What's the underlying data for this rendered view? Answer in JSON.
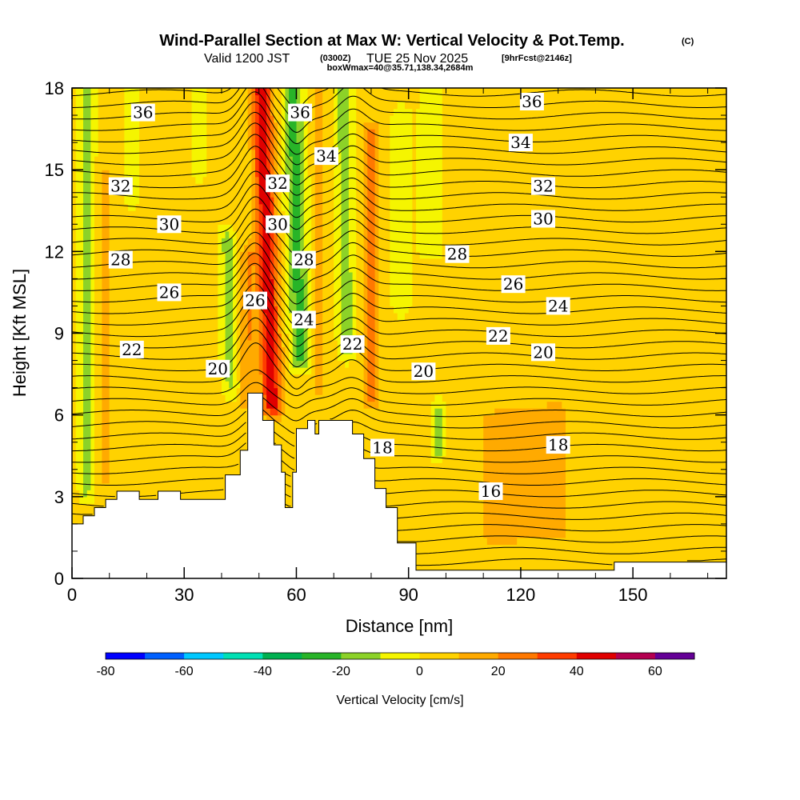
{
  "title": {
    "main": "Wind-Parallel Section at Max W: Vertical Velocity & Pot.Temp.",
    "copyright": "(C)",
    "valid_prefix": "Valid 1200 JST",
    "valid_utc": "(0300Z)",
    "valid_date": "TUE 25 Nov 2025",
    "forecast": "[9hrFcst@2146z]",
    "box_info": "boxWmax=40@35.71,138.34,2684m"
  },
  "chart_data": {
    "type": "heatmap",
    "xlabel": "Distance [nm]",
    "ylabel": "Height [Kft MSL]",
    "xlim": [
      0,
      175
    ],
    "ylim": [
      0,
      18
    ],
    "x_ticks": [
      0,
      30,
      60,
      90,
      120,
      150
    ],
    "y_ticks": [
      0,
      3,
      6,
      9,
      12,
      15,
      18
    ],
    "terrain": {
      "description": "Terrain profile (Kft) vs distance (nm)",
      "x": [
        0,
        3,
        3,
        6,
        6,
        9,
        9,
        12,
        12,
        18,
        18,
        23,
        23,
        29,
        29,
        41,
        41,
        45,
        45,
        47,
        47,
        51,
        51,
        54,
        54,
        56,
        56,
        57,
        57,
        59,
        59,
        60,
        60,
        63,
        63,
        65,
        65,
        66,
        66,
        69,
        69,
        75,
        75,
        78,
        78,
        81,
        81,
        84,
        84,
        87,
        87,
        92,
        92,
        105,
        105,
        145,
        145,
        175
      ],
      "y": [
        2.0,
        2.0,
        2.3,
        2.3,
        2.6,
        2.6,
        2.9,
        2.9,
        3.2,
        3.2,
        2.9,
        2.9,
        3.2,
        3.2,
        2.9,
        2.9,
        3.8,
        3.8,
        4.7,
        4.7,
        6.8,
        6.8,
        5.8,
        5.8,
        4.9,
        4.9,
        3.9,
        3.9,
        2.6,
        2.6,
        3.9,
        3.9,
        5.5,
        5.5,
        5.8,
        5.8,
        5.3,
        5.3,
        5.8,
        5.8,
        5.8,
        5.8,
        5.3,
        5.3,
        4.4,
        4.4,
        3.3,
        3.3,
        2.6,
        2.6,
        1.3,
        1.3,
        0.3,
        0.3,
        0.3,
        0.3,
        0.6,
        0.6
      ]
    },
    "contours_theta": {
      "unit": "C",
      "labels": [
        {
          "value": "36",
          "x": 19,
          "y": 17.1
        },
        {
          "value": "36",
          "x": 61,
          "y": 17.1
        },
        {
          "value": "36",
          "x": 123,
          "y": 17.5
        },
        {
          "value": "34",
          "x": 68,
          "y": 15.5
        },
        {
          "value": "34",
          "x": 120,
          "y": 16.0
        },
        {
          "value": "32",
          "x": 13,
          "y": 14.4
        },
        {
          "value": "32",
          "x": 55,
          "y": 14.5
        },
        {
          "value": "32",
          "x": 126,
          "y": 14.4
        },
        {
          "value": "30",
          "x": 26,
          "y": 13.0
        },
        {
          "value": "30",
          "x": 55,
          "y": 13.0
        },
        {
          "value": "30",
          "x": 126,
          "y": 13.2
        },
        {
          "value": "28",
          "x": 13,
          "y": 11.7
        },
        {
          "value": "28",
          "x": 62,
          "y": 11.7
        },
        {
          "value": "28",
          "x": 103,
          "y": 11.9
        },
        {
          "value": "26",
          "x": 26,
          "y": 10.5
        },
        {
          "value": "26",
          "x": 49,
          "y": 10.2
        },
        {
          "value": "26",
          "x": 118,
          "y": 10.8
        },
        {
          "value": "24",
          "x": 62,
          "y": 9.5
        },
        {
          "value": "24",
          "x": 130,
          "y": 10.0
        },
        {
          "value": "22",
          "x": 16,
          "y": 8.4
        },
        {
          "value": "22",
          "x": 75,
          "y": 8.6
        },
        {
          "value": "22",
          "x": 114,
          "y": 8.9
        },
        {
          "value": "20",
          "x": 39,
          "y": 7.7
        },
        {
          "value": "20",
          "x": 94,
          "y": 7.6
        },
        {
          "value": "20",
          "x": 126,
          "y": 8.3
        },
        {
          "value": "18",
          "x": 83,
          "y": 4.8
        },
        {
          "value": "18",
          "x": 130,
          "y": 4.9
        },
        {
          "value": "16",
          "x": 112,
          "y": 3.2
        }
      ]
    },
    "colorbar": {
      "label": "Vertical Velocity [cm/s]",
      "min": -80,
      "max": 70,
      "ticks": [
        "-80",
        "-60",
        "-40",
        "-20",
        "0",
        "20",
        "40",
        "60"
      ],
      "colors": [
        "#0000ff",
        "#0060ff",
        "#00c8ff",
        "#00e0b4",
        "#00b050",
        "#28b428",
        "#8cd228",
        "#f5f500",
        "#ffd200",
        "#ffaa00",
        "#ff7800",
        "#ff3c00",
        "#e00000",
        "#b40050",
        "#640096"
      ]
    },
    "vertical_velocity_features": [
      {
        "desc": "strong updraft",
        "x_center": 52,
        "y_range": [
          6.5,
          18
        ],
        "w_cms": 40
      },
      {
        "desc": "downdraft band",
        "x_center": 60,
        "y_range": [
          8,
          18
        ],
        "w_cms": -20
      },
      {
        "desc": "downdraft band",
        "x_center": 73,
        "y_range": [
          8.5,
          18
        ],
        "w_cms": -15
      },
      {
        "desc": "downdraft band",
        "x_center": 42,
        "y_range": [
          7,
          12
        ],
        "w_cms": -15
      },
      {
        "desc": "downdraft band",
        "x_center": 4,
        "y_range": [
          3.5,
          18
        ],
        "w_cms": -15
      },
      {
        "desc": "updraft band",
        "x_center": 80,
        "y_range": [
          7,
          16
        ],
        "w_cms": 25
      },
      {
        "desc": "downdraft band",
        "x_center": 98,
        "y_range": [
          5,
          6
        ],
        "w_cms": -15
      }
    ]
  }
}
